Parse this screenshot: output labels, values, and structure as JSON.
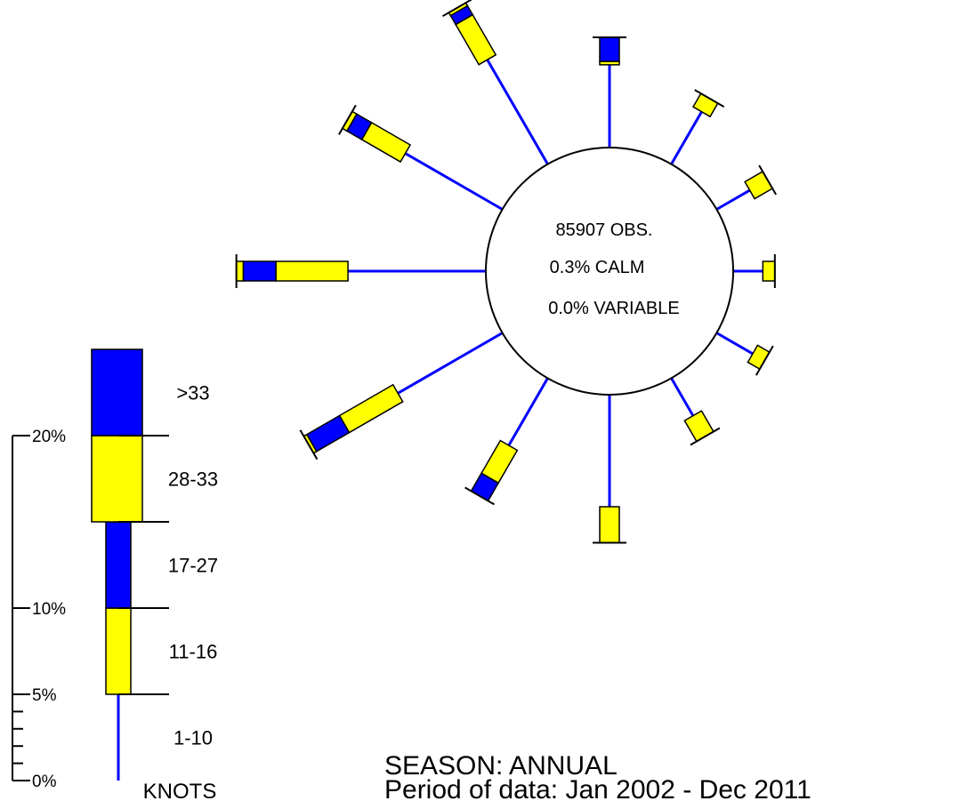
{
  "chart_data": {
    "type": "wind-rose",
    "center": {
      "observations": "85907 OBS.",
      "calm": "0.3% CALM",
      "variable": "0.0% VARIABLE"
    },
    "scale": {
      "unit": "%",
      "tick_labels": [
        "0%",
        "5%",
        "10%",
        "20%"
      ]
    },
    "speed_bins": [
      {
        "label": "1-10",
        "color": "#0000ff",
        "style": "line"
      },
      {
        "label": "11-16",
        "color": "#ffff00",
        "style": "bar"
      },
      {
        "label": "17-27",
        "color": "#0000ff",
        "style": "bar"
      },
      {
        "label": "28-33",
        "color": "#ffff00",
        "style": "bar"
      },
      {
        "label": ">33",
        "color": "#0000ff",
        "style": "bar"
      }
    ],
    "legend_values": [
      5,
      10,
      15,
      20,
      25
    ],
    "units_label": "KNOTS",
    "directions": [
      {
        "deg": 0,
        "cumulative": [
          9.8,
          10.0,
          11.4
        ]
      },
      {
        "deg": 30,
        "cumulative": [
          8.5,
          9.4
        ]
      },
      {
        "deg": 60,
        "cumulative": [
          7.2,
          8.4
        ]
      },
      {
        "deg": 90,
        "cumulative": [
          6.7,
          7.4
        ]
      },
      {
        "deg": 120,
        "cumulative": [
          7.4,
          8.2
        ]
      },
      {
        "deg": 150,
        "cumulative": [
          7.5,
          8.9
        ]
      },
      {
        "deg": 180,
        "cumulative": [
          11.5,
          13.6
        ]
      },
      {
        "deg": 210,
        "cumulative": [
          9.5,
          11.7,
          12.9
        ]
      },
      {
        "deg": 240,
        "cumulative": [
          12.0,
          15.6,
          17.8,
          18.0
        ]
      },
      {
        "deg": 270,
        "cumulative": [
          13.0,
          17.2,
          19.1,
          19.5
        ]
      },
      {
        "deg": 300,
        "cumulative": [
          11.5,
          14.1,
          15.1,
          15.4
        ]
      },
      {
        "deg": 330,
        "cumulative": [
          12.0,
          14.7,
          15.3,
          15.5
        ]
      }
    ]
  },
  "footer": {
    "season": "SEASON: ANNUAL",
    "period": "Period of data: Jan 2002 - Dec 2011"
  }
}
